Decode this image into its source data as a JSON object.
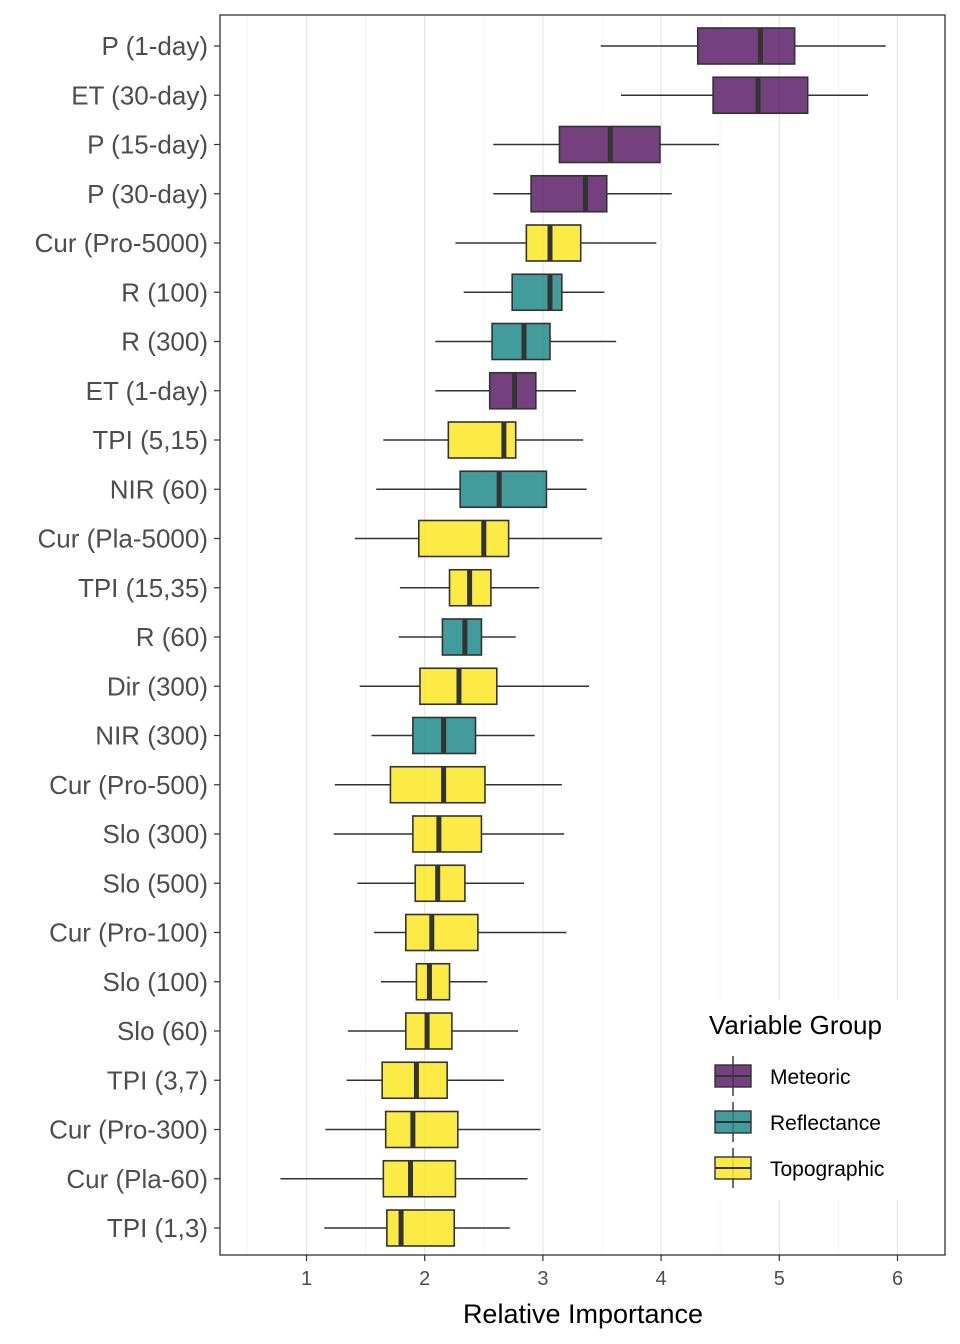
{
  "chart_data": {
    "type": "boxplot",
    "orientation": "horizontal",
    "xlabel": "Relative Importance",
    "xlim": [
      0.35,
      6.4
    ],
    "xticks": [
      1,
      2,
      3,
      4,
      5,
      6
    ],
    "grid": "vertical major and minor",
    "legend": {
      "title": "Variable Group",
      "position": "bottom-right inside",
      "entries": [
        {
          "name": "Meteoric",
          "color": "#5c1f66"
        },
        {
          "name": "Reflectance",
          "color": "#218b8b"
        },
        {
          "name": "Topographic",
          "color": "#fde725"
        }
      ]
    },
    "categories": [
      {
        "label": "P (1-day)",
        "group": "Meteoric",
        "whisker_low": 3.49,
        "q1": 4.31,
        "median": 4.84,
        "q3": 5.13,
        "whisker_high": 5.9
      },
      {
        "label": "ET (30-day)",
        "group": "Meteoric",
        "whisker_low": 3.66,
        "q1": 4.44,
        "median": 4.82,
        "q3": 5.24,
        "whisker_high": 5.75
      },
      {
        "label": "P (15-day)",
        "group": "Meteoric",
        "whisker_low": 2.58,
        "q1": 3.14,
        "median": 3.57,
        "q3": 3.99,
        "whisker_high": 4.49
      },
      {
        "label": "P (30-day)",
        "group": "Meteoric",
        "whisker_low": 2.58,
        "q1": 2.9,
        "median": 3.36,
        "q3": 3.54,
        "whisker_high": 4.09
      },
      {
        "label": "Cur (Pro-5000)",
        "group": "Topographic",
        "whisker_low": 2.26,
        "q1": 2.86,
        "median": 3.06,
        "q3": 3.32,
        "whisker_high": 3.96
      },
      {
        "label": "R (100)",
        "group": "Reflectance",
        "whisker_low": 2.33,
        "q1": 2.74,
        "median": 3.06,
        "q3": 3.16,
        "whisker_high": 3.52
      },
      {
        "label": "R (300)",
        "group": "Reflectance",
        "whisker_low": 2.09,
        "q1": 2.57,
        "median": 2.84,
        "q3": 3.06,
        "whisker_high": 3.62
      },
      {
        "label": "ET (1-day)",
        "group": "Meteoric",
        "whisker_low": 2.09,
        "q1": 2.55,
        "median": 2.76,
        "q3": 2.94,
        "whisker_high": 3.28
      },
      {
        "label": "TPI (5,15)",
        "group": "Topographic",
        "whisker_low": 1.65,
        "q1": 2.2,
        "median": 2.67,
        "q3": 2.77,
        "whisker_high": 3.34
      },
      {
        "label": "NIR (60)",
        "group": "Reflectance",
        "whisker_low": 1.59,
        "q1": 2.3,
        "median": 2.63,
        "q3": 3.03,
        "whisker_high": 3.37
      },
      {
        "label": "Cur (Pla-5000)",
        "group": "Topographic",
        "whisker_low": 1.41,
        "q1": 1.95,
        "median": 2.5,
        "q3": 2.71,
        "whisker_high": 3.5
      },
      {
        "label": "TPI (15,35)",
        "group": "Topographic",
        "whisker_low": 1.79,
        "q1": 2.21,
        "median": 2.38,
        "q3": 2.56,
        "whisker_high": 2.97
      },
      {
        "label": "R (60)",
        "group": "Reflectance",
        "whisker_low": 1.78,
        "q1": 2.15,
        "median": 2.34,
        "q3": 2.48,
        "whisker_high": 2.77
      },
      {
        "label": "Dir (300)",
        "group": "Topographic",
        "whisker_low": 1.45,
        "q1": 1.96,
        "median": 2.29,
        "q3": 2.61,
        "whisker_high": 3.39
      },
      {
        "label": "NIR (300)",
        "group": "Reflectance",
        "whisker_low": 1.55,
        "q1": 1.9,
        "median": 2.16,
        "q3": 2.43,
        "whisker_high": 2.93
      },
      {
        "label": "Cur (Pro-500)",
        "group": "Topographic",
        "whisker_low": 1.24,
        "q1": 1.71,
        "median": 2.16,
        "q3": 2.51,
        "whisker_high": 3.16
      },
      {
        "label": "Slo (300)",
        "group": "Topographic",
        "whisker_low": 1.23,
        "q1": 1.9,
        "median": 2.12,
        "q3": 2.48,
        "whisker_high": 3.18
      },
      {
        "label": "Slo (500)",
        "group": "Topographic",
        "whisker_low": 1.43,
        "q1": 1.92,
        "median": 2.11,
        "q3": 2.34,
        "whisker_high": 2.84
      },
      {
        "label": "Cur (Pro-100)",
        "group": "Topographic",
        "whisker_low": 1.57,
        "q1": 1.84,
        "median": 2.06,
        "q3": 2.45,
        "whisker_high": 3.2
      },
      {
        "label": "Slo (100)",
        "group": "Topographic",
        "whisker_low": 1.63,
        "q1": 1.93,
        "median": 2.04,
        "q3": 2.21,
        "whisker_high": 2.53
      },
      {
        "label": "Slo (60)",
        "group": "Topographic",
        "whisker_low": 1.35,
        "q1": 1.84,
        "median": 2.02,
        "q3": 2.23,
        "whisker_high": 2.79
      },
      {
        "label": "TPI (3,7)",
        "group": "Topographic",
        "whisker_low": 1.34,
        "q1": 1.64,
        "median": 1.93,
        "q3": 2.19,
        "whisker_high": 2.67
      },
      {
        "label": "Cur (Pro-300)",
        "group": "Topographic",
        "whisker_low": 1.16,
        "q1": 1.67,
        "median": 1.9,
        "q3": 2.28,
        "whisker_high": 2.98
      },
      {
        "label": "Cur (Pla-60)",
        "group": "Topographic",
        "whisker_low": 0.78,
        "q1": 1.65,
        "median": 1.88,
        "q3": 2.26,
        "whisker_high": 2.87
      },
      {
        "label": "TPI (1,3)",
        "group": "Topographic",
        "whisker_low": 1.15,
        "q1": 1.68,
        "median": 1.8,
        "q3": 2.25,
        "whisker_high": 2.72
      }
    ]
  }
}
